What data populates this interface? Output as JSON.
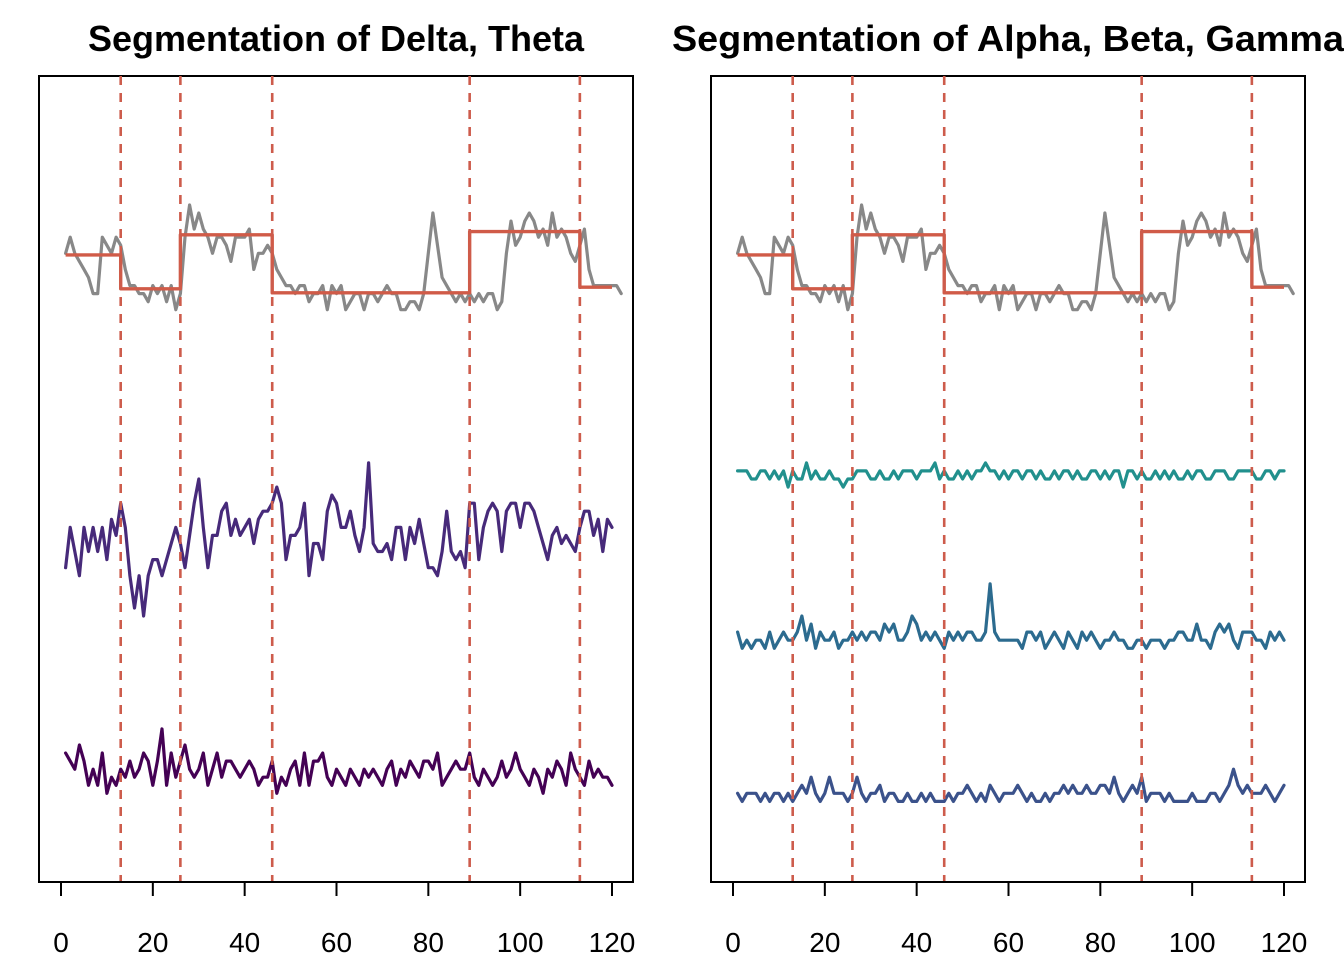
{
  "chart_data": [
    {
      "type": "line",
      "title": "Segmentation of Delta, Theta",
      "xlim": [
        0,
        120
      ],
      "ylim": [
        0,
        1
      ],
      "x_ticks": [
        "0",
        "20",
        "40",
        "60",
        "80",
        "100",
        "120"
      ],
      "changepoints": [
        13,
        26,
        46,
        89,
        113
      ],
      "changepoint_style": "dashed",
      "y_axis_shown": false,
      "segment_means": [
        {
          "from": 1,
          "to": 13,
          "value": 0.778
        },
        {
          "from": 13,
          "to": 26,
          "value": 0.736
        },
        {
          "from": 26,
          "to": 46,
          "value": 0.803
        },
        {
          "from": 46,
          "to": 89,
          "value": 0.731
        },
        {
          "from": 89,
          "to": 113,
          "value": 0.807
        },
        {
          "from": 113,
          "to": 120,
          "value": 0.738
        }
      ],
      "series": [
        {
          "color": "#888888",
          "values": [
            0.78,
            0.8,
            0.78,
            0.77,
            0.76,
            0.75,
            0.73,
            0.73,
            0.8,
            0.79,
            0.78,
            0.8,
            0.79,
            0.76,
            0.74,
            0.74,
            0.73,
            0.73,
            0.72,
            0.74,
            0.73,
            0.74,
            0.72,
            0.74,
            0.71,
            0.73,
            0.8,
            0.84,
            0.81,
            0.83,
            0.81,
            0.8,
            0.78,
            0.8,
            0.8,
            0.79,
            0.77,
            0.8,
            0.8,
            0.8,
            0.81,
            0.76,
            0.78,
            0.78,
            0.79,
            0.78,
            0.76,
            0.75,
            0.74,
            0.74,
            0.73,
            0.74,
            0.74,
            0.72,
            0.73,
            0.73,
            0.74,
            0.71,
            0.74,
            0.73,
            0.74,
            0.71,
            0.72,
            0.73,
            0.73,
            0.71,
            0.73,
            0.73,
            0.72,
            0.73,
            0.74,
            0.73,
            0.73,
            0.71,
            0.71,
            0.72,
            0.72,
            0.71,
            0.73,
            0.78,
            0.83,
            0.79,
            0.75,
            0.74,
            0.73,
            0.72,
            0.73,
            0.72,
            0.73,
            0.72,
            0.73,
            0.72,
            0.73,
            0.73,
            0.71,
            0.72,
            0.78,
            0.82,
            0.79,
            0.8,
            0.82,
            0.83,
            0.82,
            0.8,
            0.81,
            0.79,
            0.83,
            0.8,
            0.81,
            0.8,
            0.78,
            0.77,
            0.79,
            0.81,
            0.76,
            0.74,
            0.74,
            0.74,
            0.74,
            0.74,
            0.74,
            0.73
          ]
        },
        {
          "color": "#472a7a",
          "values": [
            0.39,
            0.44,
            0.41,
            0.38,
            0.44,
            0.41,
            0.44,
            0.41,
            0.44,
            0.4,
            0.45,
            0.43,
            0.47,
            0.44,
            0.38,
            0.34,
            0.38,
            0.33,
            0.38,
            0.4,
            0.4,
            0.38,
            0.4,
            0.42,
            0.44,
            0.42,
            0.39,
            0.43,
            0.47,
            0.5,
            0.44,
            0.39,
            0.43,
            0.43,
            0.46,
            0.47,
            0.43,
            0.45,
            0.43,
            0.44,
            0.45,
            0.42,
            0.45,
            0.46,
            0.46,
            0.47,
            0.49,
            0.47,
            0.4,
            0.43,
            0.43,
            0.44,
            0.47,
            0.38,
            0.42,
            0.42,
            0.4,
            0.46,
            0.48,
            0.47,
            0.44,
            0.44,
            0.46,
            0.43,
            0.41,
            0.44,
            0.52,
            0.42,
            0.41,
            0.41,
            0.42,
            0.4,
            0.44,
            0.44,
            0.4,
            0.44,
            0.42,
            0.45,
            0.42,
            0.39,
            0.39,
            0.38,
            0.41,
            0.46,
            0.41,
            0.4,
            0.41,
            0.39,
            0.47,
            0.47,
            0.4,
            0.44,
            0.46,
            0.47,
            0.46,
            0.41,
            0.46,
            0.47,
            0.47,
            0.44,
            0.47,
            0.47,
            0.46,
            0.44,
            0.42,
            0.4,
            0.43,
            0.44,
            0.42,
            0.43,
            0.42,
            0.41,
            0.44,
            0.46,
            0.46,
            0.43,
            0.45,
            0.41,
            0.45,
            0.44
          ]
        },
        {
          "color": "#440154",
          "values": [
            0.16,
            0.15,
            0.14,
            0.17,
            0.15,
            0.12,
            0.14,
            0.12,
            0.16,
            0.11,
            0.13,
            0.12,
            0.14,
            0.13,
            0.15,
            0.13,
            0.14,
            0.16,
            0.15,
            0.12,
            0.15,
            0.19,
            0.12,
            0.16,
            0.13,
            0.15,
            0.17,
            0.14,
            0.13,
            0.14,
            0.16,
            0.12,
            0.14,
            0.16,
            0.13,
            0.15,
            0.15,
            0.14,
            0.13,
            0.14,
            0.15,
            0.14,
            0.12,
            0.13,
            0.13,
            0.15,
            0.11,
            0.13,
            0.12,
            0.14,
            0.15,
            0.12,
            0.16,
            0.12,
            0.15,
            0.15,
            0.16,
            0.13,
            0.12,
            0.14,
            0.13,
            0.12,
            0.14,
            0.13,
            0.12,
            0.14,
            0.13,
            0.14,
            0.13,
            0.12,
            0.14,
            0.15,
            0.12,
            0.14,
            0.13,
            0.15,
            0.14,
            0.13,
            0.15,
            0.15,
            0.14,
            0.16,
            0.12,
            0.13,
            0.14,
            0.15,
            0.14,
            0.14,
            0.16,
            0.13,
            0.12,
            0.14,
            0.13,
            0.12,
            0.13,
            0.15,
            0.13,
            0.14,
            0.16,
            0.14,
            0.13,
            0.12,
            0.14,
            0.13,
            0.11,
            0.14,
            0.13,
            0.15,
            0.14,
            0.12,
            0.16,
            0.14,
            0.13,
            0.12,
            0.15,
            0.13,
            0.14,
            0.13,
            0.13,
            0.12
          ]
        }
      ]
    },
    {
      "type": "line",
      "title": "Segmentation of Alpha, Beta, Gamma",
      "xlim": [
        0,
        120
      ],
      "ylim": [
        0,
        1
      ],
      "x_ticks": [
        "0",
        "20",
        "40",
        "60",
        "80",
        "100",
        "120"
      ],
      "changepoints": [
        13,
        26,
        46,
        89,
        113
      ],
      "changepoint_style": "dashed",
      "y_axis_shown": false,
      "segment_means": [
        {
          "from": 1,
          "to": 13,
          "value": 0.778
        },
        {
          "from": 13,
          "to": 26,
          "value": 0.736
        },
        {
          "from": 26,
          "to": 46,
          "value": 0.803
        },
        {
          "from": 46,
          "to": 89,
          "value": 0.731
        },
        {
          "from": 89,
          "to": 113,
          "value": 0.807
        },
        {
          "from": 113,
          "to": 120,
          "value": 0.738
        }
      ],
      "series": [
        {
          "color": "#888888",
          "values": [
            0.78,
            0.8,
            0.78,
            0.77,
            0.76,
            0.75,
            0.73,
            0.73,
            0.8,
            0.79,
            0.78,
            0.8,
            0.79,
            0.76,
            0.74,
            0.74,
            0.73,
            0.73,
            0.72,
            0.74,
            0.73,
            0.74,
            0.72,
            0.74,
            0.71,
            0.73,
            0.8,
            0.84,
            0.81,
            0.83,
            0.81,
            0.8,
            0.78,
            0.8,
            0.8,
            0.79,
            0.77,
            0.8,
            0.8,
            0.8,
            0.81,
            0.76,
            0.78,
            0.78,
            0.79,
            0.78,
            0.76,
            0.75,
            0.74,
            0.74,
            0.73,
            0.74,
            0.74,
            0.72,
            0.73,
            0.73,
            0.74,
            0.71,
            0.74,
            0.73,
            0.74,
            0.71,
            0.72,
            0.73,
            0.73,
            0.71,
            0.73,
            0.73,
            0.72,
            0.73,
            0.74,
            0.73,
            0.73,
            0.71,
            0.71,
            0.72,
            0.72,
            0.71,
            0.73,
            0.78,
            0.83,
            0.79,
            0.75,
            0.74,
            0.73,
            0.72,
            0.73,
            0.72,
            0.73,
            0.72,
            0.73,
            0.72,
            0.73,
            0.73,
            0.71,
            0.72,
            0.78,
            0.82,
            0.79,
            0.8,
            0.82,
            0.83,
            0.82,
            0.8,
            0.81,
            0.79,
            0.83,
            0.8,
            0.81,
            0.8,
            0.78,
            0.77,
            0.79,
            0.81,
            0.76,
            0.74,
            0.74,
            0.74,
            0.74,
            0.74,
            0.74,
            0.73
          ]
        },
        {
          "color": "#21908d",
          "values": [
            0.51,
            0.51,
            0.51,
            0.5,
            0.5,
            0.51,
            0.51,
            0.5,
            0.51,
            0.5,
            0.51,
            0.49,
            0.51,
            0.5,
            0.5,
            0.52,
            0.5,
            0.51,
            0.5,
            0.5,
            0.51,
            0.5,
            0.5,
            0.49,
            0.5,
            0.5,
            0.51,
            0.51,
            0.51,
            0.5,
            0.5,
            0.51,
            0.5,
            0.5,
            0.51,
            0.5,
            0.51,
            0.51,
            0.51,
            0.5,
            0.51,
            0.51,
            0.51,
            0.52,
            0.5,
            0.51,
            0.5,
            0.5,
            0.51,
            0.5,
            0.51,
            0.5,
            0.51,
            0.51,
            0.52,
            0.51,
            0.51,
            0.5,
            0.51,
            0.5,
            0.51,
            0.51,
            0.5,
            0.51,
            0.51,
            0.5,
            0.51,
            0.5,
            0.5,
            0.51,
            0.5,
            0.51,
            0.51,
            0.5,
            0.51,
            0.5,
            0.5,
            0.51,
            0.51,
            0.5,
            0.51,
            0.5,
            0.51,
            0.51,
            0.49,
            0.51,
            0.51,
            0.5,
            0.51,
            0.5,
            0.5,
            0.51,
            0.5,
            0.51,
            0.5,
            0.51,
            0.5,
            0.5,
            0.51,
            0.5,
            0.51,
            0.51,
            0.5,
            0.5,
            0.51,
            0.51,
            0.51,
            0.5,
            0.5,
            0.51,
            0.51,
            0.51,
            0.51,
            0.5,
            0.5,
            0.51,
            0.51,
            0.5,
            0.51,
            0.51
          ]
        },
        {
          "color": "#2c6b8f",
          "values": [
            0.31,
            0.29,
            0.3,
            0.29,
            0.3,
            0.3,
            0.29,
            0.31,
            0.29,
            0.3,
            0.31,
            0.3,
            0.3,
            0.31,
            0.33,
            0.3,
            0.32,
            0.29,
            0.31,
            0.3,
            0.3,
            0.31,
            0.29,
            0.3,
            0.3,
            0.31,
            0.3,
            0.31,
            0.3,
            0.31,
            0.31,
            0.3,
            0.32,
            0.31,
            0.32,
            0.3,
            0.3,
            0.31,
            0.33,
            0.32,
            0.3,
            0.31,
            0.3,
            0.31,
            0.3,
            0.29,
            0.31,
            0.3,
            0.31,
            0.3,
            0.31,
            0.31,
            0.3,
            0.3,
            0.31,
            0.37,
            0.31,
            0.3,
            0.3,
            0.3,
            0.3,
            0.3,
            0.29,
            0.31,
            0.31,
            0.3,
            0.31,
            0.29,
            0.3,
            0.31,
            0.3,
            0.29,
            0.31,
            0.3,
            0.29,
            0.31,
            0.3,
            0.31,
            0.3,
            0.29,
            0.3,
            0.3,
            0.31,
            0.3,
            0.3,
            0.29,
            0.29,
            0.3,
            0.3,
            0.29,
            0.3,
            0.3,
            0.3,
            0.29,
            0.3,
            0.3,
            0.31,
            0.31,
            0.3,
            0.3,
            0.32,
            0.3,
            0.3,
            0.29,
            0.31,
            0.32,
            0.31,
            0.32,
            0.3,
            0.29,
            0.31,
            0.31,
            0.31,
            0.3,
            0.3,
            0.29,
            0.31,
            0.3,
            0.31,
            0.3
          ]
        },
        {
          "color": "#3b528b",
          "values": [
            0.11,
            0.1,
            0.11,
            0.11,
            0.11,
            0.1,
            0.11,
            0.1,
            0.11,
            0.11,
            0.1,
            0.11,
            0.1,
            0.11,
            0.12,
            0.11,
            0.13,
            0.11,
            0.1,
            0.11,
            0.13,
            0.11,
            0.11,
            0.11,
            0.1,
            0.11,
            0.13,
            0.11,
            0.1,
            0.11,
            0.11,
            0.12,
            0.1,
            0.11,
            0.11,
            0.1,
            0.1,
            0.11,
            0.1,
            0.1,
            0.11,
            0.1,
            0.11,
            0.1,
            0.1,
            0.1,
            0.11,
            0.1,
            0.11,
            0.11,
            0.12,
            0.11,
            0.1,
            0.11,
            0.1,
            0.12,
            0.11,
            0.1,
            0.11,
            0.11,
            0.11,
            0.12,
            0.11,
            0.1,
            0.11,
            0.1,
            0.1,
            0.11,
            0.1,
            0.11,
            0.11,
            0.12,
            0.11,
            0.12,
            0.11,
            0.11,
            0.12,
            0.11,
            0.11,
            0.12,
            0.12,
            0.11,
            0.13,
            0.11,
            0.1,
            0.11,
            0.12,
            0.11,
            0.13,
            0.1,
            0.11,
            0.11,
            0.11,
            0.1,
            0.11,
            0.1,
            0.1,
            0.1,
            0.1,
            0.11,
            0.1,
            0.1,
            0.1,
            0.11,
            0.11,
            0.1,
            0.11,
            0.12,
            0.14,
            0.12,
            0.11,
            0.12,
            0.11,
            0.11,
            0.11,
            0.12,
            0.11,
            0.1,
            0.11,
            0.12
          ]
        }
      ]
    }
  ]
}
